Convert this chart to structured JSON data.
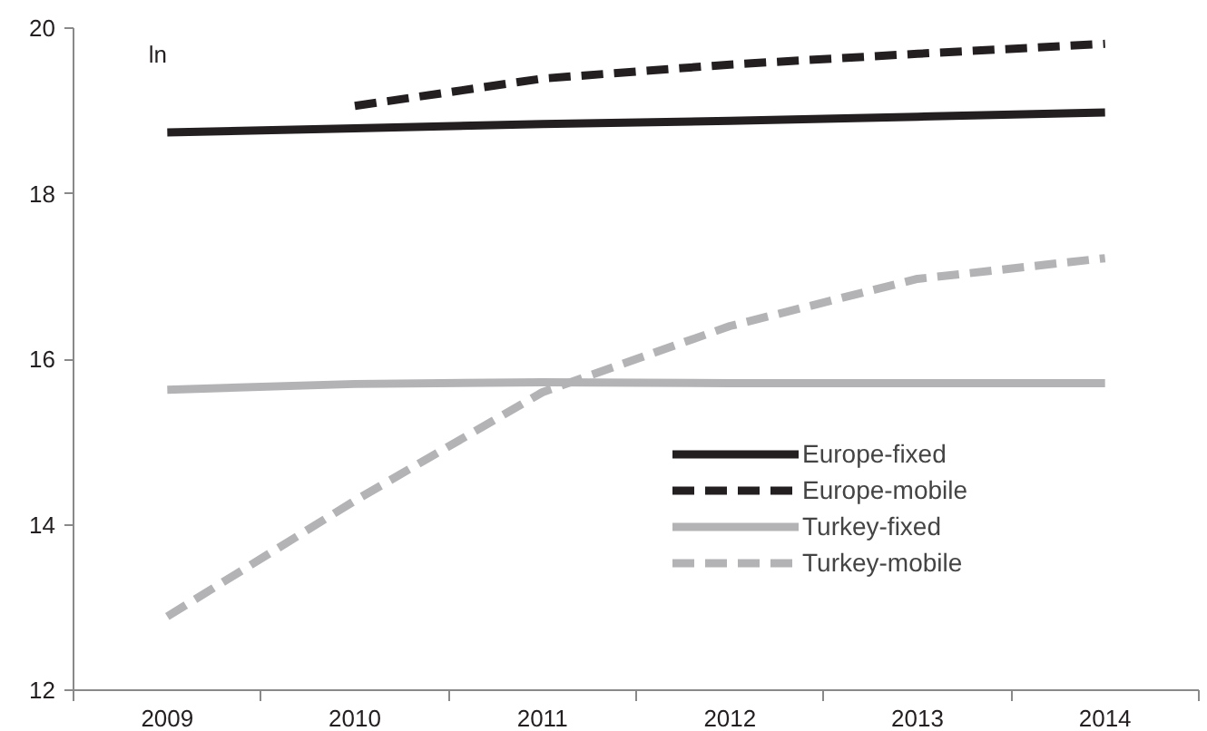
{
  "chart_data": {
    "type": "line",
    "ylabel": "ln",
    "categories": [
      "2009",
      "2010",
      "2011",
      "2012",
      "2013",
      "2014"
    ],
    "series": [
      {
        "name": "Europe-fixed",
        "color": "#231f20",
        "line_style": "solid",
        "values": [
          18.74,
          18.79,
          18.84,
          18.88,
          18.93,
          18.98
        ]
      },
      {
        "name": "Europe-mobile",
        "color": "#231f20",
        "line_style": "dashed",
        "values": [
          null,
          19.06,
          19.39,
          19.56,
          19.69,
          19.81
        ]
      },
      {
        "name": "Turkey-fixed",
        "color": "#b3b3b6",
        "line_style": "solid",
        "values": [
          15.63,
          15.7,
          15.72,
          15.71,
          15.71,
          15.71
        ]
      },
      {
        "name": "Turkey-mobile",
        "color": "#b3b3b6",
        "line_style": "dashed",
        "values": [
          12.89,
          14.29,
          15.6,
          16.4,
          16.97,
          17.22
        ]
      }
    ],
    "ylim": [
      12,
      20
    ],
    "yticks": [
      12,
      14,
      16,
      18,
      20
    ],
    "grid": false,
    "legend": "bottom right",
    "marker": "none"
  }
}
